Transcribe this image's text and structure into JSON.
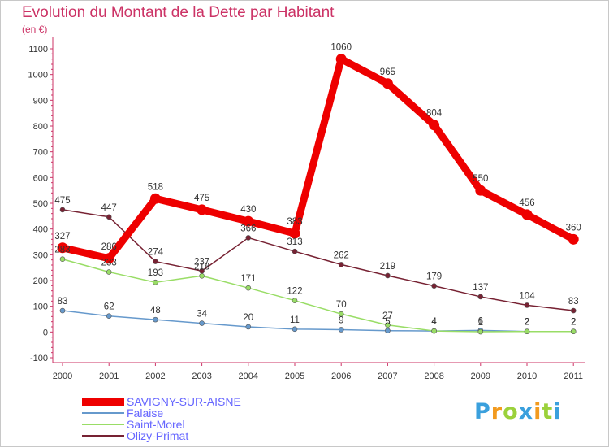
{
  "header": {
    "title": "Evolution du Montant de la Dette par Habitant",
    "subtitle": "(en €)"
  },
  "brand": {
    "logo_letters": [
      "P",
      "r",
      "o",
      "x",
      "i",
      "t",
      "i"
    ],
    "logo_colors": [
      "#3aa0dd",
      "#f29a1e",
      "#9bd13b",
      "#3aa0dd",
      "#f29a1e",
      "#9bd13b",
      "#3aa0dd"
    ]
  },
  "chart_data": {
    "type": "line",
    "title": "Evolution du Montant de la Dette par Habitant",
    "ylabel": "(en €)",
    "xlabel": "",
    "ylim": [
      -100,
      1100
    ],
    "yticks": [
      -100,
      0,
      100,
      200,
      300,
      400,
      500,
      600,
      700,
      800,
      900,
      1000,
      1100
    ],
    "x": [
      "2000",
      "2001",
      "2002",
      "2003",
      "2004",
      "2005",
      "2006",
      "2007",
      "2008",
      "2009",
      "2010",
      "2011"
    ],
    "grid": false,
    "legend_position": "bottom-left",
    "series": [
      {
        "name": "SAVIGNY-SUR-AISNE",
        "color": "#ee0000",
        "style": "thick",
        "values": [
          327,
          286,
          518,
          475,
          430,
          383,
          1060,
          965,
          804,
          550,
          456,
          360
        ],
        "labels": [
          "327",
          "286",
          "518",
          "475",
          "430",
          "383",
          "1060",
          "965",
          "804",
          "550",
          "456",
          "360"
        ]
      },
      {
        "name": "Falaise",
        "color": "#6699cc",
        "style": "thin",
        "values": [
          83,
          62,
          48,
          34,
          20,
          11,
          9,
          5,
          4,
          6,
          2,
          2
        ],
        "labels": [
          "83",
          "62",
          "48",
          "34",
          "20",
          "11",
          "9",
          "5",
          "4",
          "6",
          "2",
          "2"
        ]
      },
      {
        "name": "Saint-Morel",
        "color": "#99dd66",
        "style": "thin",
        "values": [
          283,
          233,
          193,
          218,
          171,
          122,
          70,
          27,
          4,
          1,
          2,
          2
        ],
        "labels": [
          "283",
          "233",
          "193",
          "218",
          "171",
          "122",
          "70",
          "27",
          "4",
          "1",
          "2",
          "2"
        ]
      },
      {
        "name": "Olizy-Primat",
        "color": "#772233",
        "style": "thin",
        "values": [
          475,
          447,
          274,
          237,
          366,
          313,
          262,
          219,
          179,
          137,
          104,
          83
        ],
        "labels": [
          "475",
          "447",
          "274",
          "237",
          "366",
          "313",
          "262",
          "219",
          "179",
          "137",
          "104",
          "83"
        ]
      }
    ]
  }
}
